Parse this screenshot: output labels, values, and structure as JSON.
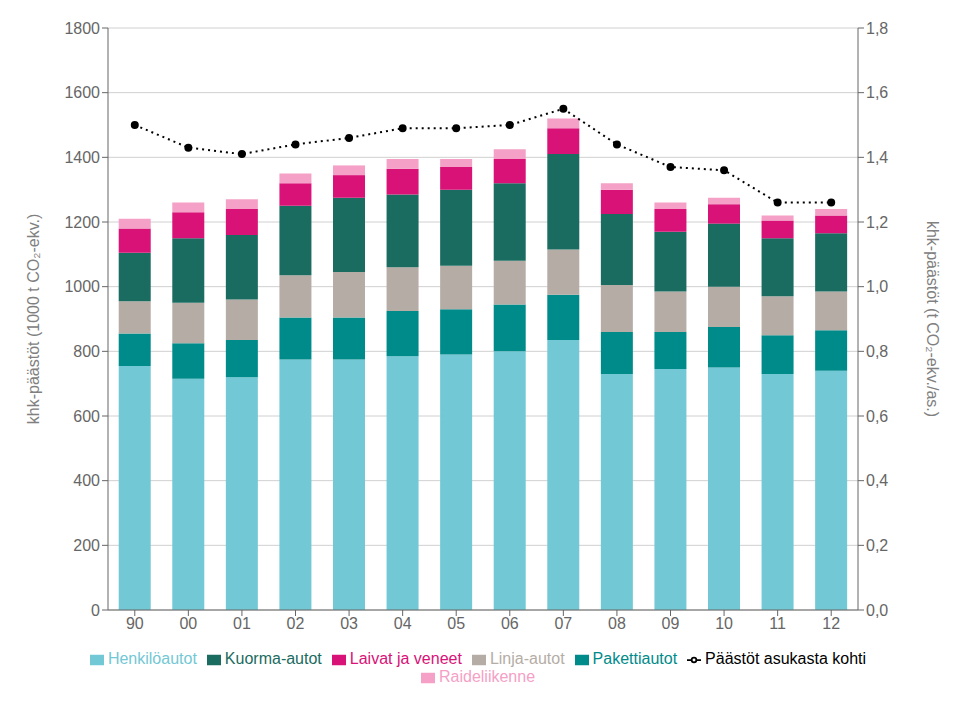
{
  "chart_data": {
    "type": "bar",
    "stacked": true,
    "grid": true,
    "legend": "bottom",
    "categories": [
      "90",
      "00",
      "01",
      "02",
      "03",
      "04",
      "05",
      "06",
      "07",
      "08",
      "09",
      "10",
      "11",
      "12"
    ],
    "ylabel": "khk-päästöt (1000 t CO₂-ekv.)",
    "y2label": "khk-päästöt (t CO₂-ekv./as.)",
    "ylim": [
      0,
      1800
    ],
    "yticks": [
      0,
      200,
      400,
      600,
      800,
      1000,
      1200,
      1400,
      1600,
      1800
    ],
    "y2lim": [
      0,
      1.8
    ],
    "y2ticks": [
      {
        "value": 0.0,
        "label": "0,0"
      },
      {
        "value": 0.2,
        "label": "0,2"
      },
      {
        "value": 0.4,
        "label": "0,4"
      },
      {
        "value": 0.6,
        "label": "0,6"
      },
      {
        "value": 0.8,
        "label": "0,8"
      },
      {
        "value": 1.0,
        "label": "1,0"
      },
      {
        "value": 1.2,
        "label": "1,2"
      },
      {
        "value": 1.4,
        "label": "1,4"
      },
      {
        "value": 1.6,
        "label": "1,6"
      },
      {
        "value": 1.8,
        "label": "1,8"
      }
    ],
    "series": [
      {
        "name": "Henkilöautot",
        "color": "#72C8D4",
        "values": [
          755,
          715,
          720,
          775,
          775,
          785,
          790,
          800,
          835,
          730,
          745,
          750,
          730,
          740
        ]
      },
      {
        "name": "Pakettiautot",
        "color": "#008B8B",
        "values": [
          100,
          110,
          115,
          130,
          130,
          140,
          140,
          145,
          140,
          130,
          115,
          125,
          120,
          125
        ]
      },
      {
        "name": "Linja-autot",
        "color": "#B5ADA5",
        "values": [
          100,
          125,
          125,
          130,
          140,
          135,
          135,
          135,
          140,
          145,
          125,
          125,
          120,
          120
        ]
      },
      {
        "name": "Kuorma-autot",
        "color": "#1A6B60",
        "values": [
          150,
          200,
          200,
          215,
          230,
          225,
          235,
          240,
          295,
          220,
          185,
          195,
          180,
          180
        ]
      },
      {
        "name": "Laivat ja veneet",
        "color": "#D81277",
        "values": [
          75,
          80,
          80,
          70,
          70,
          80,
          70,
          75,
          80,
          75,
          70,
          60,
          55,
          55
        ]
      },
      {
        "name": "Raideliikenne",
        "color": "#F5A0C6",
        "values": [
          30,
          30,
          30,
          30,
          30,
          30,
          25,
          30,
          30,
          20,
          20,
          20,
          15,
          20
        ]
      },
      {
        "name": "Päästöt asukasta kohti",
        "type": "line",
        "axis": "y2",
        "color": "#000000",
        "marker": "circle",
        "line_style": "dotted",
        "values": [
          1.5,
          1.43,
          1.41,
          1.44,
          1.46,
          1.49,
          1.49,
          1.5,
          1.55,
          1.44,
          1.37,
          1.36,
          1.26,
          1.26
        ]
      }
    ]
  }
}
